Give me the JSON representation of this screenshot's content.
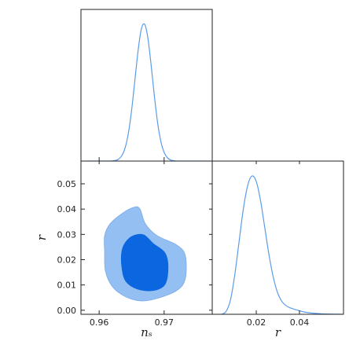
{
  "chart_data": [
    {
      "type": "line",
      "color": "#5a9cec",
      "x": [
        0.958,
        0.96,
        0.961,
        0.962,
        0.9625,
        0.963,
        0.9635,
        0.964,
        0.9645,
        0.965,
        0.9655,
        0.966,
        0.9665,
        0.967,
        0.9675,
        0.968,
        0.9685,
        0.969,
        0.9695,
        0.97,
        0.9705,
        0.971,
        0.9715,
        0.972,
        0.973,
        0.975,
        0.977
      ],
      "values": [
        0,
        0,
        0.0001,
        0.0012,
        0.0045,
        0.0145,
        0.04,
        0.097,
        0.204,
        0.372,
        0.588,
        0.807,
        0.962,
        0.995,
        0.894,
        0.697,
        0.472,
        0.277,
        0.142,
        0.063,
        0.024,
        0.008,
        0.0023,
        0.0005,
        0,
        0,
        0
      ],
      "xlim": [
        0.9572,
        0.9774
      ],
      "ylim": [
        0,
        1.103
      ]
    },
    {
      "type": "contour",
      "xlabel": "nₛ",
      "ylabel": "r",
      "xlim": [
        0.9572,
        0.9774
      ],
      "ylim": [
        -0.0016,
        0.059
      ],
      "xticks": [
        0.96,
        0.97
      ],
      "yticks": [
        {
          "value": 0,
          "label": "0.00"
        },
        {
          "value": 0.01,
          "label": "0.01"
        },
        {
          "value": 0.02,
          "label": "0.02"
        },
        {
          "value": 0.03,
          "label": "0.03"
        },
        {
          "value": 0.04,
          "label": "0.04"
        },
        {
          "value": 0.05,
          "label": "0.05"
        }
      ],
      "levels": [
        {
          "color": "#93bff2",
          "x": [
            0.96084,
            0.96169,
            0.96349,
            0.9653,
            0.96627,
            0.96711,
            0.96892,
            0.97193,
            0.97325,
            0.97325,
            0.97193,
            0.96892,
            0.96651,
            0.9641,
            0.96205,
            0.96096,
            0.96084
          ],
          "y": [
            0.0295,
            0.0342,
            0.0382,
            0.0407,
            0.0401,
            0.0342,
            0.0295,
            0.0258,
            0.0217,
            0.0124,
            0.0078,
            0.0047,
            0.0037,
            0.0053,
            0.0093,
            0.0155,
            0.0233
          ]
        },
        {
          "color": "#0b66e0",
          "x": [
            0.96349,
            0.9641,
            0.9653,
            0.96687,
            0.96831,
            0.97012,
            0.9706,
            0.97012,
            0.96831,
            0.9659,
            0.9641,
            0.96349
          ],
          "y": [
            0.0233,
            0.027,
            0.0295,
            0.0298,
            0.0264,
            0.0227,
            0.0171,
            0.0102,
            0.0078,
            0.0084,
            0.0115,
            0.0171
          ]
        }
      ]
    },
    {
      "type": "line",
      "xlabel": "r",
      "color": "#5a9cec",
      "x": [
        0.004,
        0.006,
        0.008,
        0.01,
        0.012,
        0.014,
        0.016,
        0.018,
        0.02,
        0.022,
        0.024,
        0.026,
        0.028,
        0.03,
        0.032,
        0.034,
        0.036,
        0.04,
        0.044,
        0.05,
        0.06
      ],
      "values": [
        0,
        0.02,
        0.1,
        0.28,
        0.52,
        0.76,
        0.93,
        1.0,
        0.96,
        0.82,
        0.62,
        0.42,
        0.26,
        0.15,
        0.09,
        0.06,
        0.045,
        0.025,
        0.012,
        0.004,
        0
      ],
      "xlim": [
        -0.0004,
        0.0604
      ],
      "ylim": [
        0,
        1.108
      ],
      "xticks": [
        0.02,
        0.04
      ]
    }
  ]
}
